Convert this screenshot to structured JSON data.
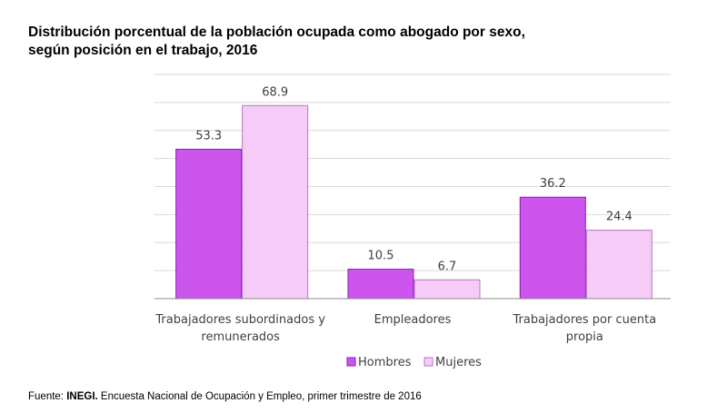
{
  "title_line1": "Distribución porcentual de la población ocupada como abogado por sexo,",
  "title_line2": "según posición en el trabajo, 2016",
  "source": {
    "prefix": "Fuente: ",
    "org": "INEGI.",
    "text": " Encuesta Nacional de  Ocupación y Empleo, primer trimestre de 2016"
  },
  "chart_data": {
    "type": "bar",
    "title": "Distribución porcentual de la población ocupada como abogado por sexo, según posición en el trabajo, 2016",
    "categories": [
      [
        "Trabajadores subordinados y",
        "remunerados"
      ],
      [
        "Empleadores"
      ],
      [
        "Trabajadores por cuenta",
        "propia"
      ]
    ],
    "series": [
      {
        "name": "Hombres",
        "values": [
          53.3,
          10.5,
          36.2
        ],
        "labels": [
          "53.3",
          "10.5",
          "36.2"
        ],
        "color": "#cc55ee",
        "stroke": "#8a1fb0"
      },
      {
        "name": "Mujeres",
        "values": [
          68.9,
          6.7,
          24.4
        ],
        "labels": [
          "68.9",
          "6.7",
          "24.4"
        ],
        "color": "#f5ccf7",
        "stroke": "#b874c8"
      }
    ],
    "ylim": [
      0,
      80
    ],
    "grid": true,
    "legend": "bottom-center",
    "xlabel": "",
    "ylabel": ""
  }
}
